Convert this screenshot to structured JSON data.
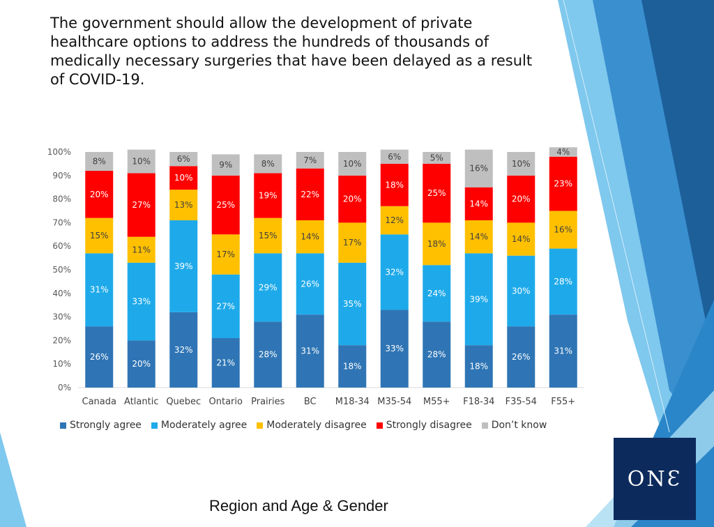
{
  "slide": {
    "title": "The government should allow the development of private healthcare options to address the hundreds of thousands of medically necessary surgeries that have been delayed as a result of COVID-19.",
    "subtitle": "Region and Age & Gender",
    "logo_text": "ONƐ"
  },
  "colors": {
    "strongly_agree": "#2f75b5",
    "moderately_agree": "#1eaaea",
    "moderately_disagree": "#ffc000",
    "strongly_disagree": "#ff0000",
    "dont_know": "#bfbfbf",
    "logo_bg": "#0c2a5c"
  },
  "chart_data": {
    "type": "bar",
    "stacked": true,
    "categories": [
      "Canada",
      "Atlantic",
      "Quebec",
      "Ontario",
      "Prairies",
      "BC",
      "M18-34",
      "M35-54",
      "M55+",
      "F18-34",
      "F35-54",
      "F55+"
    ],
    "ylim": [
      0,
      100
    ],
    "yticks": [
      "0%",
      "10%",
      "20%",
      "30%",
      "40%",
      "50%",
      "60%",
      "70%",
      "80%",
      "90%",
      "100%"
    ],
    "legend_position": "bottom",
    "series": [
      {
        "name": "Strongly agree",
        "color": "#2f75b5",
        "values": [
          26,
          20,
          32,
          21,
          28,
          31,
          18,
          33,
          28,
          18,
          26,
          31
        ]
      },
      {
        "name": "Moderately agree",
        "color": "#1eaaea",
        "values": [
          31,
          33,
          39,
          27,
          29,
          26,
          35,
          32,
          24,
          39,
          30,
          28
        ]
      },
      {
        "name": "Moderately disagree",
        "color": "#ffc000",
        "values": [
          15,
          11,
          13,
          17,
          15,
          14,
          17,
          12,
          18,
          14,
          14,
          16
        ]
      },
      {
        "name": "Strongly disagree",
        "color": "#ff0000",
        "values": [
          20,
          27,
          10,
          25,
          19,
          22,
          20,
          18,
          25,
          14,
          20,
          23
        ]
      },
      {
        "name": "Don’t know",
        "color": "#bfbfbf",
        "values": [
          8,
          10,
          6,
          9,
          8,
          7,
          10,
          6,
          5,
          16,
          10,
          4
        ]
      }
    ]
  }
}
